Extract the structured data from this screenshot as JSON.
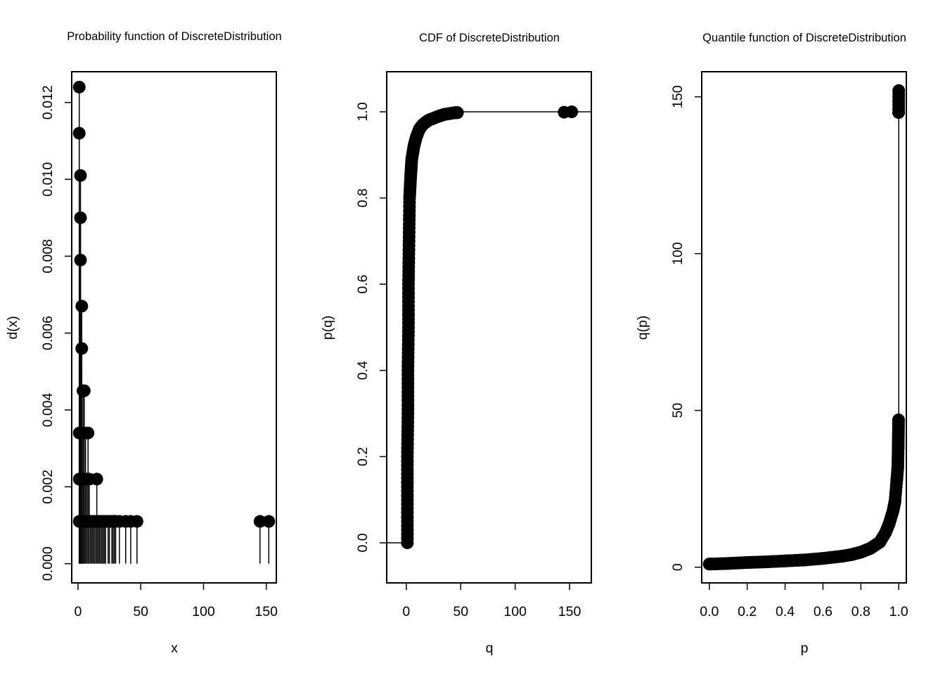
{
  "page": {
    "background": "#ffffff",
    "ink": "#000000"
  },
  "chart_data": [
    {
      "type": "stem",
      "title": "Probability function of DiscreteDistribution",
      "xlabel": "x",
      "ylabel": "d(x)",
      "xlim": [
        -5,
        158
      ],
      "ylim": [
        -0.0005,
        0.0128
      ],
      "xticks": [
        0,
        50,
        100,
        150
      ],
      "yticks": [
        0,
        0.002,
        0.004,
        0.006,
        0.008,
        0.01,
        0.012
      ],
      "ytick_labels": [
        "0.000",
        "0.002",
        "0.004",
        "0.006",
        "0.008",
        "0.010",
        "0.012"
      ],
      "points": [
        {
          "x": 1,
          "y": 0.0124
        },
        {
          "x": 1,
          "y": 0.0112
        },
        {
          "x": 2,
          "y": 0.0101
        },
        {
          "x": 2,
          "y": 0.009
        },
        {
          "x": 2,
          "y": 0.0079
        },
        {
          "x": 3,
          "y": 0.0067
        },
        {
          "x": 3,
          "y": 0.0056
        },
        {
          "x": 4,
          "y": 0.0045
        },
        {
          "x": 5,
          "y": 0.0045
        },
        {
          "x": 1,
          "y": 0.0034
        },
        {
          "x": 4,
          "y": 0.0034
        },
        {
          "x": 6,
          "y": 0.0034
        },
        {
          "x": 8,
          "y": 0.0034
        },
        {
          "x": 1,
          "y": 0.0022
        },
        {
          "x": 3,
          "y": 0.0022
        },
        {
          "x": 5,
          "y": 0.0022
        },
        {
          "x": 7,
          "y": 0.0022
        },
        {
          "x": 9,
          "y": 0.0022
        },
        {
          "x": 15,
          "y": 0.0022
        },
        {
          "x": 1,
          "y": 0.0011
        },
        {
          "x": 5,
          "y": 0.0011
        },
        {
          "x": 8,
          "y": 0.0011
        },
        {
          "x": 10,
          "y": 0.0011
        },
        {
          "x": 11,
          "y": 0.0011
        },
        {
          "x": 12,
          "y": 0.0011
        },
        {
          "x": 13,
          "y": 0.0011
        },
        {
          "x": 14,
          "y": 0.0011
        },
        {
          "x": 16,
          "y": 0.0011
        },
        {
          "x": 17,
          "y": 0.0011
        },
        {
          "x": 18,
          "y": 0.0011
        },
        {
          "x": 19,
          "y": 0.0011
        },
        {
          "x": 20,
          "y": 0.0011
        },
        {
          "x": 21,
          "y": 0.0011
        },
        {
          "x": 22,
          "y": 0.0011
        },
        {
          "x": 24,
          "y": 0.0011
        },
        {
          "x": 25,
          "y": 0.0011
        },
        {
          "x": 27,
          "y": 0.0011
        },
        {
          "x": 28,
          "y": 0.0011
        },
        {
          "x": 29,
          "y": 0.0011
        },
        {
          "x": 30,
          "y": 0.0011
        },
        {
          "x": 33,
          "y": 0.0011
        },
        {
          "x": 38,
          "y": 0.0011
        },
        {
          "x": 42,
          "y": 0.0011
        },
        {
          "x": 47,
          "y": 0.0011
        },
        {
          "x": 145,
          "y": 0.0011
        },
        {
          "x": 152,
          "y": 0.0011
        }
      ]
    },
    {
      "type": "step",
      "title": "CDF of DiscreteDistribution",
      "xlabel": "q",
      "ylabel": "p(q)",
      "xlim": [
        -18,
        170
      ],
      "ylim": [
        -0.093,
        1.093
      ],
      "xticks": [
        0,
        50,
        100,
        150
      ],
      "yticks": [
        0,
        0.2,
        0.4,
        0.6,
        0.8,
        1.0
      ],
      "ytick_labels": [
        "0.0",
        "0.2",
        "0.4",
        "0.6",
        "0.8",
        "1.0"
      ],
      "curve": [
        {
          "q": 1,
          "p": 0.0
        },
        {
          "q": 1,
          "p": 0.1
        },
        {
          "q": 1,
          "p": 0.2
        },
        {
          "q": 1.5,
          "p": 0.3
        },
        {
          "q": 1.5,
          "p": 0.4
        },
        {
          "q": 2,
          "p": 0.5
        },
        {
          "q": 2,
          "p": 0.6
        },
        {
          "q": 2.5,
          "p": 0.7
        },
        {
          "q": 3,
          "p": 0.8
        },
        {
          "q": 4,
          "p": 0.85
        },
        {
          "q": 5,
          "p": 0.89
        },
        {
          "q": 7,
          "p": 0.92
        },
        {
          "q": 9,
          "p": 0.94
        },
        {
          "q": 12,
          "p": 0.96
        },
        {
          "q": 15,
          "p": 0.97
        },
        {
          "q": 20,
          "p": 0.98
        },
        {
          "q": 25,
          "p": 0.985
        },
        {
          "q": 30,
          "p": 0.99
        },
        {
          "q": 35,
          "p": 0.994
        },
        {
          "q": 40,
          "p": 0.996
        },
        {
          "q": 45,
          "p": 0.998
        },
        {
          "q": 47,
          "p": 0.998
        }
      ],
      "tail_points": [
        {
          "q": 145,
          "p": 0.999
        },
        {
          "q": 152,
          "p": 1.0
        }
      ],
      "left_level": {
        "from": -18,
        "to": 1,
        "p": 0.0
      },
      "right_level": {
        "from": 47,
        "to": 170,
        "p": 1.0
      }
    },
    {
      "type": "quantile",
      "title": "Quantile function of DiscreteDistribution",
      "xlabel": "p",
      "ylabel": "q(p)",
      "xlim": [
        -0.04,
        1.04
      ],
      "ylim": [
        -5,
        158
      ],
      "xticks": [
        0,
        0.2,
        0.4,
        0.6,
        0.8,
        1.0
      ],
      "xtick_labels": [
        "0.0",
        "0.2",
        "0.4",
        "0.6",
        "0.8",
        "1.0"
      ],
      "yticks": [
        0,
        50,
        100,
        150
      ],
      "curve": [
        {
          "p": 0.0,
          "q": 1
        },
        {
          "p": 0.1,
          "q": 1.2
        },
        {
          "p": 0.2,
          "q": 1.5
        },
        {
          "p": 0.3,
          "q": 1.7
        },
        {
          "p": 0.4,
          "q": 2
        },
        {
          "p": 0.5,
          "q": 2.3
        },
        {
          "p": 0.6,
          "q": 2.8
        },
        {
          "p": 0.7,
          "q": 3.5
        },
        {
          "p": 0.75,
          "q": 4
        },
        {
          "p": 0.8,
          "q": 4.8
        },
        {
          "p": 0.85,
          "q": 6
        },
        {
          "p": 0.9,
          "q": 8
        },
        {
          "p": 0.93,
          "q": 11
        },
        {
          "p": 0.95,
          "q": 14
        },
        {
          "p": 0.97,
          "q": 18
        },
        {
          "p": 0.98,
          "q": 21
        },
        {
          "p": 0.99,
          "q": 28
        },
        {
          "p": 0.995,
          "q": 32
        },
        {
          "p": 0.997,
          "q": 38
        },
        {
          "p": 0.998,
          "q": 42
        },
        {
          "p": 0.999,
          "q": 47
        },
        {
          "p": 0.9995,
          "q": 145
        },
        {
          "p": 1.0,
          "q": 152
        }
      ],
      "vertical_at": 1.0
    }
  ]
}
